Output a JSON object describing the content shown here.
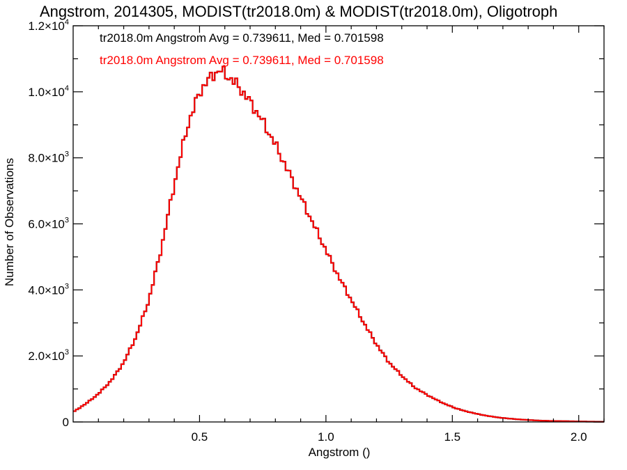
{
  "chart_data": {
    "type": "histogram-step",
    "title": "Angstrom, 2014305, MODIST(tr2018.0m) & MODIST(tr2018.0m), Oligotroph",
    "xlabel": "Angstrom ()",
    "ylabel": "Number of Observations",
    "xlim": [
      0.0,
      2.1
    ],
    "ylim": [
      0,
      12000
    ],
    "x_ticks": [
      {
        "value": 0.5,
        "label": "0.5"
      },
      {
        "value": 1.0,
        "label": "1.0"
      },
      {
        "value": 1.5,
        "label": "1.5"
      },
      {
        "value": 2.0,
        "label": "2.0"
      }
    ],
    "y_ticks": [
      {
        "value": 0,
        "mantissa": "0",
        "exp": ""
      },
      {
        "value": 2000,
        "mantissa": "2.0×10",
        "exp": "3"
      },
      {
        "value": 4000,
        "mantissa": "4.0×10",
        "exp": "3"
      },
      {
        "value": 6000,
        "mantissa": "6.0×10",
        "exp": "3"
      },
      {
        "value": 8000,
        "mantissa": "8.0×10",
        "exp": "3"
      },
      {
        "value": 10000,
        "mantissa": "1.0×10",
        "exp": "4"
      },
      {
        "value": 12000,
        "mantissa": "1.2×10",
        "exp": "4"
      }
    ],
    "annotations": [
      {
        "text": "tr2018.0m Angstrom Avg = 0.739611, Med = 0.701598",
        "color": "#000000"
      },
      {
        "text": "tr2018.0m Angstrom Avg = 0.739611, Med = 0.701598",
        "color": "#ff0000"
      }
    ],
    "bin_width": 0.01,
    "series": [
      {
        "color_hex": "#000000",
        "x": [
          0.0,
          0.05,
          0.1,
          0.15,
          0.2,
          0.25,
          0.3,
          0.35,
          0.4,
          0.45,
          0.5,
          0.55,
          0.58,
          0.6,
          0.65,
          0.7,
          0.75,
          0.8,
          0.85,
          0.9,
          0.95,
          1.0,
          1.05,
          1.1,
          1.15,
          1.2,
          1.25,
          1.3,
          1.35,
          1.4,
          1.45,
          1.5,
          1.55,
          1.6,
          1.65,
          1.7,
          1.75,
          1.8,
          1.85,
          1.9,
          1.95,
          2.0,
          2.05,
          2.1
        ],
        "values": [
          300,
          550,
          850,
          1250,
          1800,
          2600,
          3700,
          5300,
          7200,
          8900,
          10000,
          10500,
          10650,
          10550,
          10200,
          9700,
          9100,
          8400,
          7600,
          6800,
          6000,
          5200,
          4400,
          3700,
          3000,
          2350,
          1800,
          1400,
          1050,
          820,
          620,
          450,
          330,
          240,
          170,
          120,
          85,
          60,
          40,
          30,
          25,
          15,
          10,
          5
        ]
      },
      {
        "color_hex": "#ff0000",
        "x": [
          0.0,
          0.05,
          0.1,
          0.15,
          0.2,
          0.25,
          0.3,
          0.35,
          0.4,
          0.45,
          0.5,
          0.55,
          0.58,
          0.6,
          0.65,
          0.7,
          0.75,
          0.8,
          0.85,
          0.9,
          0.95,
          1.0,
          1.05,
          1.1,
          1.15,
          1.2,
          1.25,
          1.3,
          1.35,
          1.4,
          1.45,
          1.5,
          1.55,
          1.6,
          1.65,
          1.7,
          1.75,
          1.8,
          1.85,
          1.9,
          1.95,
          2.0,
          2.05,
          2.1
        ],
        "values": [
          300,
          550,
          850,
          1250,
          1800,
          2600,
          3700,
          5300,
          7200,
          8900,
          10000,
          10500,
          10650,
          10550,
          10200,
          9700,
          9100,
          8400,
          7600,
          6800,
          6000,
          5200,
          4400,
          3700,
          3000,
          2350,
          1800,
          1400,
          1050,
          820,
          620,
          450,
          330,
          240,
          170,
          120,
          85,
          60,
          40,
          30,
          25,
          15,
          10,
          5
        ]
      }
    ]
  }
}
